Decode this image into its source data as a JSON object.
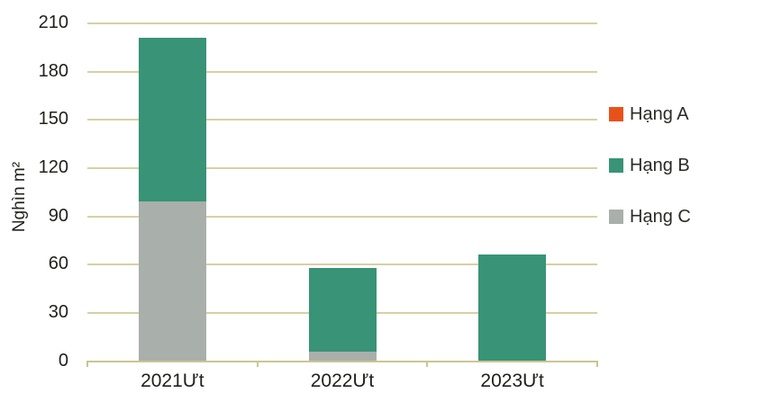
{
  "chart_data": {
    "type": "bar",
    "stacked": true,
    "title": "",
    "categories": [
      "2021Ưt",
      "2022Ưt",
      "2023Ưt"
    ],
    "series": [
      {
        "name": "Hạng A",
        "color": "#E8521A",
        "values": [
          0,
          0,
          0
        ]
      },
      {
        "name": "Hạng B",
        "color": "#389377",
        "values": [
          102,
          52,
          66
        ]
      },
      {
        "name": "Hạng C",
        "color": "#A9AFAA",
        "values": [
          99,
          6,
          0
        ]
      }
    ],
    "stack_order_bottom_to_top": [
      "Hạng C",
      "Hạng B",
      "Hạng A"
    ],
    "ylabel": "Nghìn m²",
    "xlabel": "",
    "ylim": [
      0,
      210
    ],
    "yticks": [
      0,
      30,
      60,
      90,
      120,
      150,
      180,
      210
    ],
    "legend_position": "right",
    "legend_entries": [
      "Hạng A",
      "Hạng B",
      "Hạng C"
    ],
    "grid": "horizontal",
    "gridline_color": "#D6D1A2",
    "axis_line_color": "#CBC591",
    "text_color": "#21211c",
    "background_color": "#FFFFFF"
  }
}
